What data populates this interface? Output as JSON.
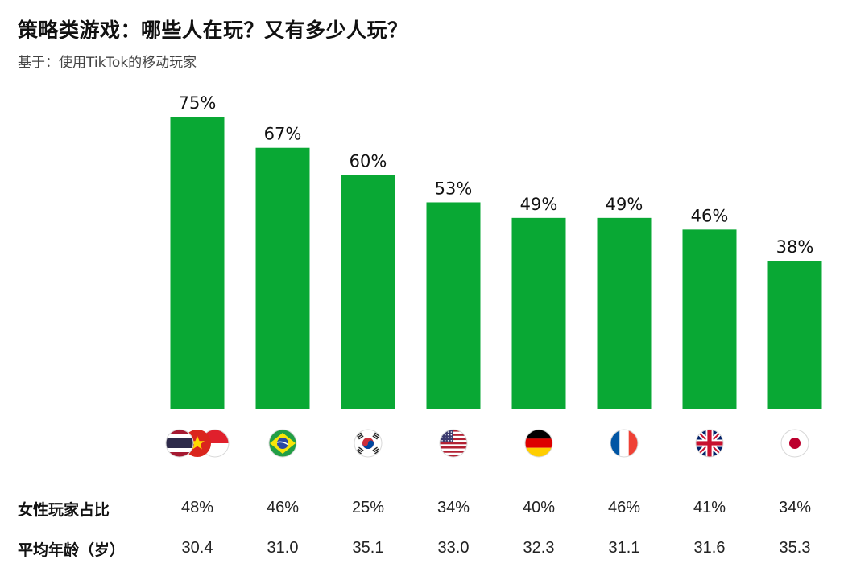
{
  "title": "策略类游戏：哪些人在玩？又有多少人玩？",
  "subtitle": "基于：使用TikTok的移动玩家",
  "colors": {
    "bar": "#09a834"
  },
  "chart_data": {
    "type": "bar",
    "categories": [
      "泰国/越南/印尼",
      "巴西",
      "韩国",
      "美国",
      "德国",
      "法国",
      "英国",
      "日本"
    ],
    "flag_icons": [
      "thailand-vietnam-indonesia-flags-icon",
      "brazil-flag-icon",
      "south-korea-flag-icon",
      "usa-flag-icon",
      "germany-flag-icon",
      "france-flag-icon",
      "uk-flag-icon",
      "japan-flag-icon"
    ],
    "values": [
      75,
      67,
      60,
      53,
      49,
      49,
      46,
      38
    ],
    "value_labels": [
      "75%",
      "67%",
      "60%",
      "53%",
      "49%",
      "49%",
      "46%",
      "38%"
    ],
    "ylim": [
      0,
      80
    ]
  },
  "table": {
    "rows": [
      {
        "label": "女性玩家占比",
        "values": [
          "48%",
          "46%",
          "25%",
          "34%",
          "40%",
          "46%",
          "41%",
          "34%"
        ]
      },
      {
        "label": "平均年龄（岁）",
        "values": [
          "30.4",
          "31.0",
          "35.1",
          "33.0",
          "32.3",
          "31.1",
          "31.6",
          "35.3"
        ]
      }
    ]
  }
}
